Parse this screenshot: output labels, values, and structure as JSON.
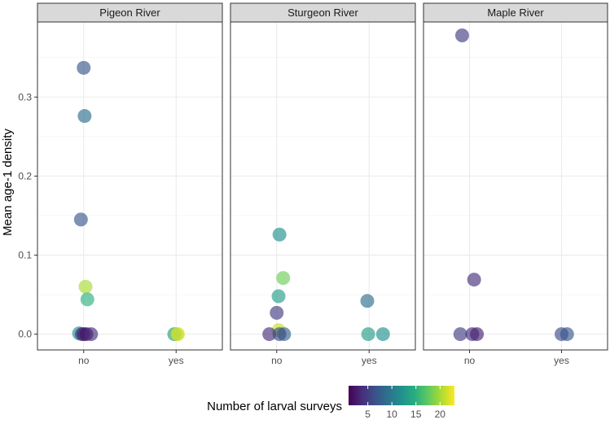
{
  "chart_data": {
    "type": "scatter",
    "ylabel": "Mean age-1 density",
    "xlabel": "",
    "ylim": [
      -0.02,
      0.395
    ],
    "yticks": [
      0.0,
      0.1,
      0.2,
      0.3
    ],
    "ytick_labels": [
      "0.0",
      "0.1",
      "0.2",
      "0.3"
    ],
    "categories": [
      "no",
      "yes"
    ],
    "grid": true,
    "legend": {
      "title": "Number of larval surveys",
      "type": "colorbar",
      "placement": "bottom",
      "range": [
        1,
        23
      ],
      "ticks": [
        5,
        10,
        15,
        20
      ],
      "tick_labels": [
        "5",
        "10",
        "15",
        "20"
      ],
      "palette": "viridis"
    },
    "panels": [
      {
        "title": "Pigeon River",
        "points": [
          {
            "x": "no",
            "jitter": 0.0,
            "y": 0.337,
            "surveys": 7
          },
          {
            "x": "no",
            "jitter": 0.01,
            "y": 0.276,
            "surveys": 9
          },
          {
            "x": "no",
            "jitter": -0.03,
            "y": 0.145,
            "surveys": 7
          },
          {
            "x": "no",
            "jitter": 0.02,
            "y": 0.06,
            "surveys": 20
          },
          {
            "x": "no",
            "jitter": 0.04,
            "y": 0.044,
            "surveys": 15
          },
          {
            "x": "no",
            "jitter": -0.05,
            "y": 0.001,
            "surveys": 12
          },
          {
            "x": "no",
            "jitter": -0.02,
            "y": 0.0,
            "surveys": 5
          },
          {
            "x": "no",
            "jitter": 0.0,
            "y": 0.0,
            "surveys": 3
          },
          {
            "x": "no",
            "jitter": 0.03,
            "y": 0.0,
            "surveys": 2
          },
          {
            "x": "no",
            "jitter": 0.08,
            "y": 0.0,
            "surveys": 4
          },
          {
            "x": "yes",
            "jitter": -0.02,
            "y": 0.0,
            "surveys": 13
          },
          {
            "x": "yes",
            "jitter": 0.01,
            "y": 0.0,
            "surveys": 19
          },
          {
            "x": "yes",
            "jitter": 0.02,
            "y": 0.0,
            "surveys": 22
          }
        ]
      },
      {
        "title": "Sturgeon River",
        "points": [
          {
            "x": "no",
            "jitter": 0.03,
            "y": 0.126,
            "surveys": 12
          },
          {
            "x": "no",
            "jitter": 0.07,
            "y": 0.071,
            "surveys": 18
          },
          {
            "x": "no",
            "jitter": 0.02,
            "y": 0.048,
            "surveys": 13
          },
          {
            "x": "no",
            "jitter": 0.0,
            "y": 0.027,
            "surveys": 5
          },
          {
            "x": "no",
            "jitter": 0.02,
            "y": 0.005,
            "surveys": 21
          },
          {
            "x": "no",
            "jitter": -0.08,
            "y": 0.0,
            "surveys": 4
          },
          {
            "x": "no",
            "jitter": 0.08,
            "y": 0.0,
            "surveys": 8
          },
          {
            "x": "no",
            "jitter": 0.03,
            "y": 0.0,
            "surveys": 6
          },
          {
            "x": "yes",
            "jitter": -0.02,
            "y": 0.042,
            "surveys": 9
          },
          {
            "x": "yes",
            "jitter": -0.01,
            "y": 0.0,
            "surveys": 13
          },
          {
            "x": "yes",
            "jitter": 0.15,
            "y": 0.0,
            "surveys": 12
          }
        ]
      },
      {
        "title": "Maple River",
        "points": [
          {
            "x": "no",
            "jitter": -0.08,
            "y": 0.378,
            "surveys": 5
          },
          {
            "x": "no",
            "jitter": 0.05,
            "y": 0.069,
            "surveys": 4
          },
          {
            "x": "no",
            "jitter": -0.1,
            "y": 0.0,
            "surveys": 5
          },
          {
            "x": "no",
            "jitter": 0.03,
            "y": 0.0,
            "surveys": 4
          },
          {
            "x": "no",
            "jitter": 0.08,
            "y": 0.0,
            "surveys": 3
          },
          {
            "x": "yes",
            "jitter": 0.0,
            "y": 0.0,
            "surveys": 6
          },
          {
            "x": "yes",
            "jitter": 0.06,
            "y": 0.0,
            "surveys": 7
          }
        ]
      }
    ]
  }
}
